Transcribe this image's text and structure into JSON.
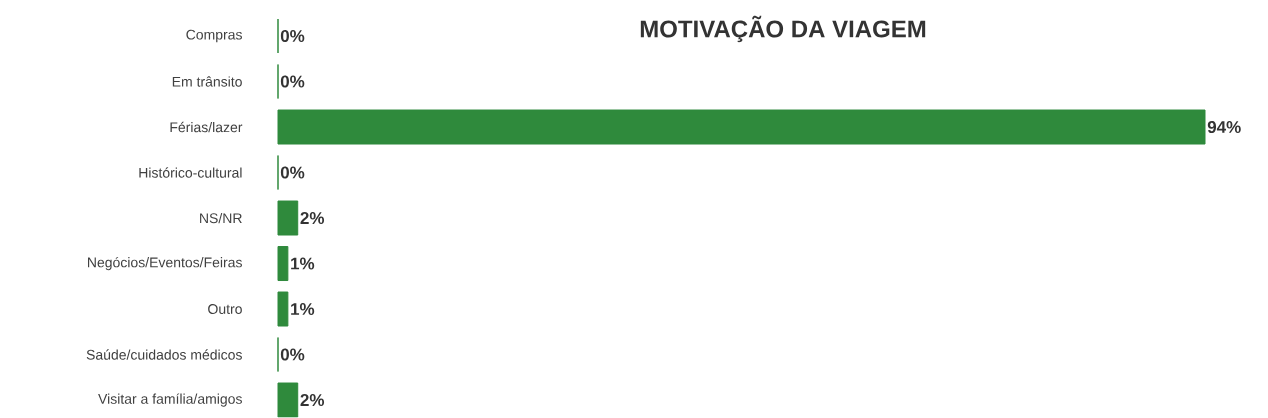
{
  "chart_data": {
    "type": "bar",
    "orientation": "horizontal",
    "title": "MOTIVAÇÃO DA VIAGEM",
    "categories": [
      "Compras",
      "Em trânsito",
      "Férias/lazer",
      "Histórico-cultural",
      "NS/NR",
      "Negócios/Eventos/Feiras",
      "Outro",
      "Saúde/cuidados médicos",
      "Visitar a família/amigos"
    ],
    "values": [
      0,
      0,
      94,
      0,
      2,
      1,
      1,
      0,
      2
    ],
    "value_labels": [
      "0%",
      "0%",
      "94%",
      "0%",
      "2%",
      "1%",
      "1%",
      "0%",
      "2%"
    ],
    "color": "#2f8a3c",
    "tick_labels": "y"
  }
}
